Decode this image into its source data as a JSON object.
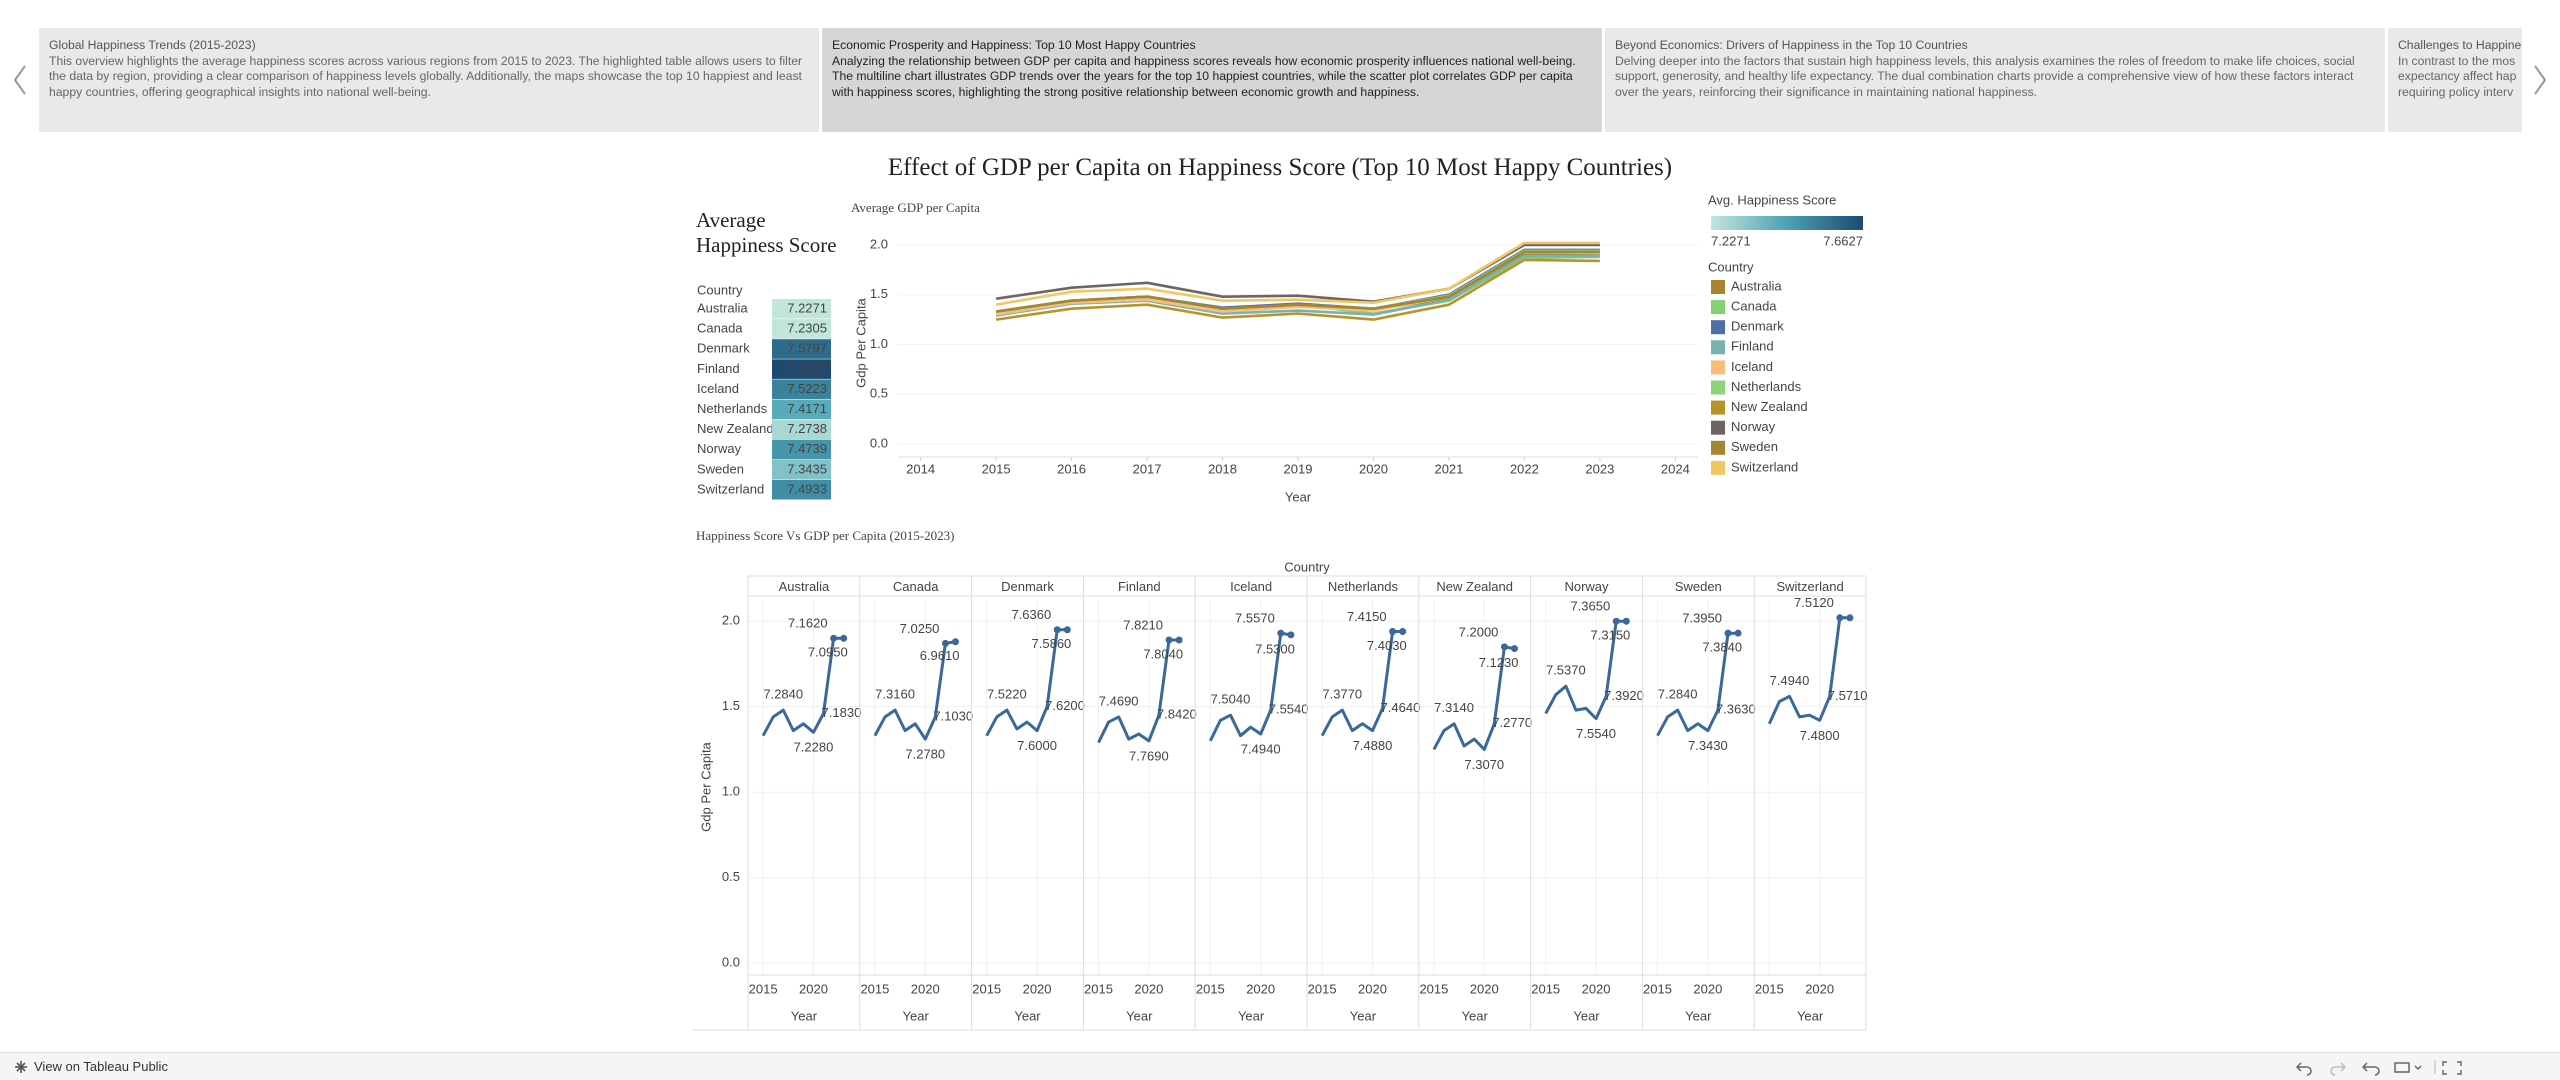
{
  "story_points": [
    {
      "title": "Global Happiness Trends (2015-2023)",
      "body": "This overview highlights the average happiness scores across various regions from 2015 to 2023. The highlighted table allows users to filter the data by region, providing a clear comparison of happiness levels globally. Additionally, the maps showcase the top 10 happiest and least happy countries, offering geographical insights into national well-being."
    },
    {
      "title": "Economic Prosperity and Happiness: Top 10 Most Happy Countries",
      "body": "Analyzing the relationship between GDP per capita and happiness scores reveals how economic prosperity influences national well-being. The multiline chart illustrates GDP trends over the years for the top 10 happiest countries, while the scatter plot correlates GDP per capita with happiness scores, highlighting the strong positive relationship between economic growth and happiness."
    },
    {
      "title": "Beyond Economics: Drivers of Happiness in the Top 10 Countries",
      "body": "Delving deeper into the factors that sustain high happiness levels, this analysis examines the roles of freedom to make life choices, social support, generosity, and healthy life expectancy. The dual combination charts provide a comprehensive view of how these factors interact over the years, reinforcing their significance in maintaining national happiness."
    },
    {
      "title": "Challenges to Happine",
      "body": "In contrast to the mos expectancy affect hap requiring policy interv"
    }
  ],
  "dashboard_title": "Effect of GDP per Capita on Happiness Score (Top 10 Most Happy Countries)",
  "footer": {
    "link": "View on Tableau Public"
  },
  "chart_data": [
    {
      "type": "heatmap",
      "title": "Average Happiness Score",
      "row_header": "Country",
      "categories": [
        "Australia",
        "Canada",
        "Denmark",
        "Finland",
        "Iceland",
        "Netherlands",
        "New Zealand",
        "Norway",
        "Sweden",
        "Switzerland"
      ],
      "values": [
        7.2271,
        7.2305,
        7.5797,
        7.6627,
        7.5223,
        7.4171,
        7.2738,
        7.4739,
        7.3435,
        7.4933
      ],
      "color_legend": {
        "title": "Avg. Happiness Score",
        "range": [
          7.2271,
          7.6627
        ],
        "colors": [
          "#c2e6dc",
          "#4aa2b5",
          "#1e4a72"
        ]
      }
    },
    {
      "type": "line",
      "title": "Average GDP per Capita",
      "xlabel": "Year",
      "ylabel": "Gdp Per Capita",
      "x": [
        2015,
        2016,
        2017,
        2018,
        2019,
        2020,
        2021,
        2022,
        2023
      ],
      "xlim": [
        2013.7,
        2024.3
      ],
      "xticks": [
        2014,
        2015,
        2016,
        2017,
        2018,
        2019,
        2020,
        2021,
        2022,
        2023,
        2024
      ],
      "ylim": [
        -0.13,
        2.16
      ],
      "yticks": [
        {
          "value": 0,
          "label": "0.0"
        },
        0.5,
        {
          "value": 1,
          "label": "1.0"
        },
        1.5,
        {
          "value": 2,
          "label": "2.0"
        }
      ],
      "grid": true,
      "legend_title": "Country",
      "legend": "right",
      "series": [
        {
          "name": "Australia",
          "color": "#a9822e",
          "values": [
            1.33,
            1.44,
            1.48,
            1.36,
            1.4,
            1.35,
            1.46,
            1.9,
            1.9
          ]
        },
        {
          "name": "Canada",
          "color": "#86cf74",
          "values": [
            1.33,
            1.44,
            1.48,
            1.36,
            1.4,
            1.31,
            1.44,
            1.87,
            1.88
          ]
        },
        {
          "name": "Denmark",
          "color": "#4e6fa8",
          "values": [
            1.33,
            1.44,
            1.48,
            1.37,
            1.41,
            1.36,
            1.5,
            1.95,
            1.95
          ]
        },
        {
          "name": "Finland",
          "color": "#78b2ae",
          "values": [
            1.29,
            1.41,
            1.44,
            1.31,
            1.34,
            1.3,
            1.45,
            1.89,
            1.89
          ]
        },
        {
          "name": "Iceland",
          "color": "#f8bd7b",
          "values": [
            1.3,
            1.42,
            1.45,
            1.33,
            1.38,
            1.34,
            1.48,
            1.93,
            1.92
          ]
        },
        {
          "name": "Netherlands",
          "color": "#8fd27c",
          "values": [
            1.33,
            1.44,
            1.48,
            1.36,
            1.4,
            1.36,
            1.49,
            1.94,
            1.94
          ]
        },
        {
          "name": "New Zealand",
          "color": "#b6942a",
          "values": [
            1.25,
            1.36,
            1.4,
            1.27,
            1.31,
            1.25,
            1.4,
            1.85,
            1.84
          ]
        },
        {
          "name": "Norway",
          "color": "#6f6461",
          "values": [
            1.46,
            1.57,
            1.62,
            1.48,
            1.49,
            1.43,
            1.56,
            2.0,
            2.0
          ]
        },
        {
          "name": "Sweden",
          "color": "#a48531",
          "values": [
            1.33,
            1.44,
            1.48,
            1.36,
            1.4,
            1.36,
            1.48,
            1.93,
            1.93
          ]
        },
        {
          "name": "Switzerland",
          "color": "#f0c862",
          "values": [
            1.4,
            1.53,
            1.56,
            1.44,
            1.45,
            1.42,
            1.56,
            2.02,
            2.02
          ]
        }
      ]
    },
    {
      "type": "small-multiples",
      "title": "Happiness Score Vs GDP per Capita (2015-2023)",
      "facet_label": "Country",
      "xlabel": "Year",
      "ylabel": "Gdp Per Capita",
      "color": "#3b6898",
      "grid": true,
      "x": [
        2015,
        2016,
        2017,
        2018,
        2019,
        2020,
        2021,
        2022,
        2023
      ],
      "xlim": [
        2013.5,
        2024.6
      ],
      "xticks": [
        2015,
        2020
      ],
      "ylim": [
        -0.07,
        2.13
      ],
      "yticks": [
        {
          "value": 0,
          "label": "0.0"
        },
        0.5,
        {
          "value": 1,
          "label": "1.0"
        },
        1.5,
        {
          "value": 2,
          "label": "2.0"
        }
      ],
      "series": [
        {
          "name": "Australia",
          "values": [
            1.33,
            1.44,
            1.48,
            1.36,
            1.4,
            1.35,
            1.46,
            1.9,
            1.9
          ],
          "labels": [
            null,
            null,
            "7.2840",
            null,
            null,
            "7.2280",
            "7.1830",
            "7.1620",
            "7.0950"
          ]
        },
        {
          "name": "Canada",
          "values": [
            1.33,
            1.44,
            1.48,
            1.36,
            1.4,
            1.31,
            1.44,
            1.87,
            1.88
          ],
          "labels": [
            null,
            null,
            "7.3160",
            null,
            null,
            "7.2780",
            "7.1030",
            "7.0250",
            "6.9610"
          ]
        },
        {
          "name": "Denmark",
          "values": [
            1.33,
            1.44,
            1.48,
            1.37,
            1.41,
            1.36,
            1.5,
            1.95,
            1.95
          ],
          "labels": [
            null,
            null,
            "7.5220",
            null,
            null,
            "7.6000",
            "7.6200",
            "7.6360",
            "7.5860"
          ]
        },
        {
          "name": "Finland",
          "values": [
            1.29,
            1.41,
            1.44,
            1.31,
            1.34,
            1.3,
            1.45,
            1.89,
            1.89
          ],
          "labels": [
            null,
            null,
            "7.4690",
            null,
            null,
            "7.7690",
            "7.8420",
            "7.8210",
            "7.8040"
          ]
        },
        {
          "name": "Iceland",
          "values": [
            1.3,
            1.42,
            1.45,
            1.33,
            1.38,
            1.34,
            1.48,
            1.93,
            1.92
          ],
          "labels": [
            null,
            null,
            "7.5040",
            null,
            null,
            "7.4940",
            "7.5540",
            "7.5570",
            "7.5300"
          ]
        },
        {
          "name": "Netherlands",
          "values": [
            1.33,
            1.44,
            1.48,
            1.36,
            1.4,
            1.36,
            1.49,
            1.94,
            1.94
          ],
          "labels": [
            null,
            null,
            "7.3770",
            null,
            null,
            "7.4880",
            "7.4640",
            "7.4150",
            "7.4030"
          ]
        },
        {
          "name": "New Zealand",
          "values": [
            1.25,
            1.36,
            1.4,
            1.27,
            1.31,
            1.25,
            1.4,
            1.85,
            1.84
          ],
          "labels": [
            null,
            null,
            "7.3140",
            null,
            null,
            "7.3070",
            "7.2770",
            "7.2000",
            "7.1230"
          ]
        },
        {
          "name": "Norway",
          "values": [
            1.46,
            1.57,
            1.62,
            1.48,
            1.49,
            1.43,
            1.56,
            2.0,
            2.0
          ],
          "labels": [
            null,
            null,
            "7.5370",
            null,
            null,
            "7.5540",
            "7.3920",
            "7.3650",
            "7.3150"
          ]
        },
        {
          "name": "Sweden",
          "values": [
            1.33,
            1.44,
            1.48,
            1.36,
            1.4,
            1.36,
            1.48,
            1.93,
            1.93
          ],
          "labels": [
            null,
            null,
            "7.2840",
            null,
            null,
            "7.3430",
            "7.3630",
            "7.3950",
            "7.3840"
          ]
        },
        {
          "name": "Switzerland",
          "values": [
            1.4,
            1.53,
            1.56,
            1.44,
            1.45,
            1.42,
            1.56,
            2.02,
            2.02
          ],
          "labels": [
            null,
            null,
            "7.4940",
            null,
            null,
            "7.4800",
            "7.5710",
            "7.5120",
            null
          ]
        }
      ]
    }
  ]
}
